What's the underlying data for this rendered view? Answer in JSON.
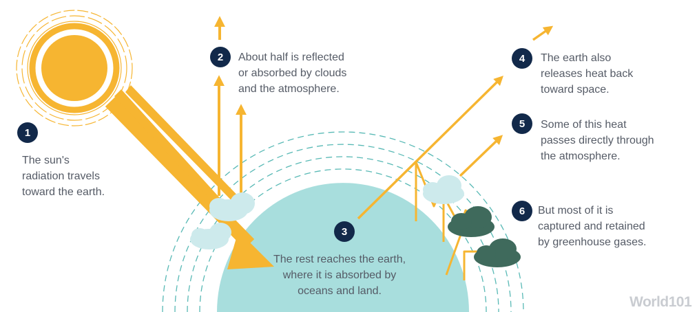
{
  "colors": {
    "sun": "#f6b531",
    "arrow": "#f6b531",
    "earth": "#a8dedd",
    "cloud_light": "#cdeaec",
    "cloud_dark": "#3f6a5c",
    "badge": "#12294a",
    "text": "#555b66",
    "dashes": "#58b9b5"
  },
  "steps": [
    {
      "number": "1",
      "text": "The sun's\nradiation travels\ntoward the earth."
    },
    {
      "number": "2",
      "text": "About half is reflected\nor absorbed by clouds\nand the atmosphere."
    },
    {
      "number": "3",
      "text": "The rest reaches the earth,\nwhere it is absorbed by\noceans and land."
    },
    {
      "number": "4",
      "text": "The earth also\nreleases heat back\ntoward space."
    },
    {
      "number": "5",
      "text": "Some of this heat\npasses directly through\nthe atmosphere."
    },
    {
      "number": "6",
      "text": "But most of it is\ncaptured and retained\nby greenhouse gases."
    }
  ],
  "logo": "World101",
  "icons": [
    "sun-icon",
    "earth-icon",
    "cloud-icon",
    "arrow-icon"
  ]
}
